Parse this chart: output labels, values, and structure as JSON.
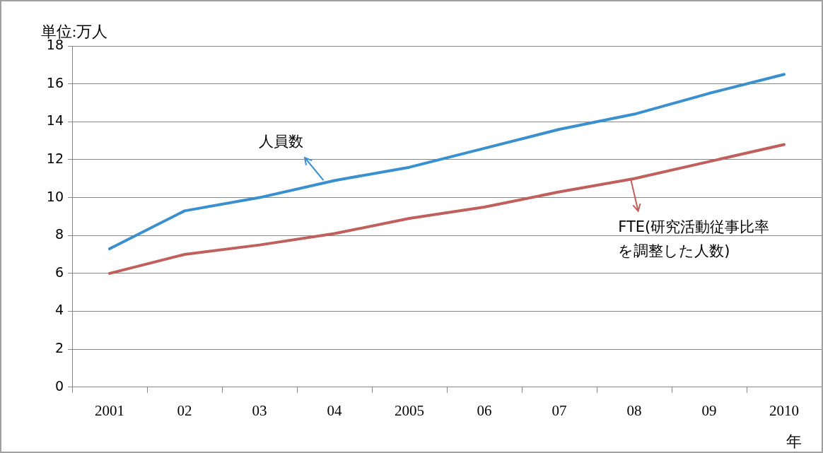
{
  "chart_data": {
    "type": "line",
    "ylabel": "単位:万人",
    "xlabel": "年",
    "categories": [
      "2001",
      "02",
      "03",
      "04",
      "2005",
      "06",
      "07",
      "08",
      "09",
      "2010"
    ],
    "series": [
      {
        "name": "人員数",
        "color": "#3a8fcf",
        "values": [
          7.3,
          9.3,
          10.0,
          10.9,
          11.6,
          12.6,
          13.6,
          14.4,
          15.5,
          16.5
        ]
      },
      {
        "name": "FTE(研究活動従事比率を調整した人数)",
        "color": "#c0605c",
        "values": [
          6.0,
          7.0,
          7.5,
          8.1,
          8.9,
          9.5,
          10.3,
          11.0,
          11.9,
          12.8
        ]
      }
    ],
    "ylim": [
      0,
      18
    ],
    "yticks": [
      0,
      2,
      4,
      6,
      8,
      10,
      12,
      14,
      16,
      18
    ],
    "grid": "y",
    "marker": "none",
    "line_style": "solid"
  }
}
